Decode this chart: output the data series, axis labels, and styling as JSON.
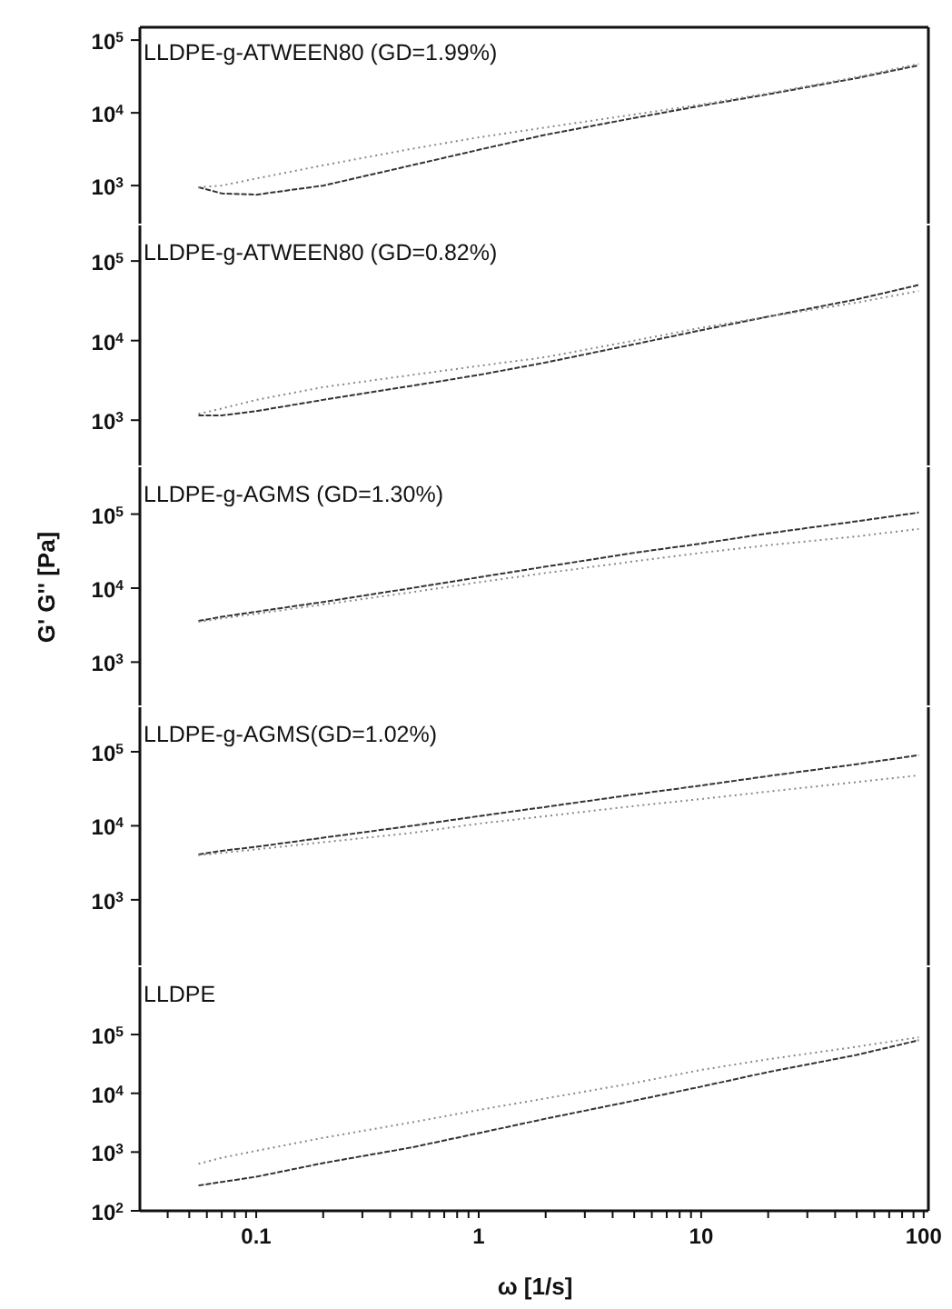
{
  "chart_data": [
    {
      "type": "line",
      "annotations": [
        "LLDPE-g-ATWEEN80 (GD=1.99%)"
      ],
      "x": [
        0.055,
        0.07,
        0.1,
        0.2,
        0.5,
        1,
        2,
        5,
        10,
        20,
        50,
        95
      ],
      "xlim": [
        0.03,
        105
      ],
      "ylim": [
        300,
        150000
      ],
      "log": "xy",
      "tick_labels": "y",
      "yticks": [
        {
          "value": 1000,
          "label": "10$^{3}$"
        },
        {
          "value": 10000,
          "label": "10$^{4}$"
        },
        {
          "value": 100000,
          "label": "10$^{5}$"
        }
      ],
      "marker": "none",
      "series": [
        {
          "color": "#333333",
          "line_style": "dashed",
          "values": [
            950,
            780,
            750,
            1000,
            1900,
            3100,
            5000,
            8500,
            12500,
            18000,
            30000,
            45000
          ]
        },
        {
          "color": "#888888",
          "line_style": "dotted",
          "values": [
            950,
            1000,
            1250,
            1900,
            3200,
            4600,
            6300,
            9500,
            13000,
            18500,
            31000,
            47000
          ]
        }
      ]
    },
    {
      "type": "line",
      "annotations": [
        "LLDPE-g-ATWEEN80 (GD=0.82%)"
      ],
      "x": [
        0.055,
        0.07,
        0.1,
        0.2,
        0.5,
        1,
        2,
        5,
        10,
        20,
        50,
        95
      ],
      "xlim": [
        0.03,
        105
      ],
      "ylim": [
        270,
        280000
      ],
      "log": "xy",
      "tick_labels": "y",
      "yticks": [
        {
          "value": 1000,
          "label": "10$^{3}$"
        },
        {
          "value": 10000,
          "label": "10$^{4}$"
        },
        {
          "value": 100000,
          "label": "10$^{5}$"
        }
      ],
      "marker": "none",
      "series": [
        {
          "color": "#333333",
          "line_style": "dashed",
          "values": [
            1150,
            1150,
            1300,
            1800,
            2700,
            3700,
            5300,
            9000,
            13500,
            20000,
            33000,
            50000
          ]
        },
        {
          "color": "#888888",
          "line_style": "dotted",
          "values": [
            1200,
            1400,
            1800,
            2600,
            3700,
            4800,
            6200,
            10000,
            14500,
            20000,
            30000,
            42000
          ]
        }
      ]
    },
    {
      "type": "line",
      "ylabel": "G' G'' [Pa]",
      "annotations": [
        "LLDPE-g-AGMS (GD=1.30%)"
      ],
      "x": [
        0.055,
        0.07,
        0.1,
        0.2,
        0.5,
        1,
        2,
        5,
        10,
        20,
        50,
        95
      ],
      "xlim": [
        0.03,
        105
      ],
      "ylim": [
        260,
        430000
      ],
      "log": "xy",
      "tick_labels": "y",
      "yticks": [
        {
          "value": 1000,
          "label": "10$^{3}$"
        },
        {
          "value": 10000,
          "label": "10$^{4}$"
        },
        {
          "value": 100000,
          "label": "10$^{5}$"
        }
      ],
      "marker": "none",
      "series": [
        {
          "color": "#333333",
          "line_style": "dashed",
          "values": [
            3600,
            4100,
            4800,
            6500,
            10000,
            14000,
            19500,
            30000,
            40000,
            55000,
            80000,
            105000
          ]
        },
        {
          "color": "#888888",
          "line_style": "dotted",
          "values": [
            3500,
            3900,
            4500,
            6000,
            8800,
            12000,
            16000,
            23000,
            30000,
            38000,
            50000,
            63000
          ]
        }
      ]
    },
    {
      "type": "line",
      "annotations": [
        "LLDPE-g-AGMS(GD=1.02%)"
      ],
      "x": [
        0.055,
        0.07,
        0.1,
        0.2,
        0.5,
        1,
        2,
        5,
        10,
        20,
        50,
        95
      ],
      "xlim": [
        0.03,
        105
      ],
      "ylim": [
        130,
        400000
      ],
      "log": "xy",
      "tick_labels": "y",
      "yticks": [
        {
          "value": 1000,
          "label": "10$^{3}$"
        },
        {
          "value": 10000,
          "label": "10$^{4}$"
        },
        {
          "value": 100000,
          "label": "10$^{5}$"
        }
      ],
      "marker": "none",
      "series": [
        {
          "color": "#333333",
          "line_style": "dashed",
          "values": [
            4100,
            4600,
            5200,
            6900,
            10000,
            13500,
            18000,
            26500,
            35000,
            47000,
            68000,
            90000
          ]
        },
        {
          "color": "#888888",
          "line_style": "dotted",
          "values": [
            4000,
            4300,
            4800,
            6000,
            8000,
            10700,
            13500,
            18500,
            23000,
            29000,
            39000,
            48000
          ]
        }
      ]
    },
    {
      "type": "line",
      "xlabel": "ω [1/s]",
      "annotations": [
        "LLDPE"
      ],
      "x": [
        0.055,
        0.07,
        0.1,
        0.2,
        0.5,
        1,
        2,
        5,
        10,
        20,
        50,
        95
      ],
      "xlim": [
        0.03,
        105
      ],
      "ylim": [
        100,
        1400000
      ],
      "log": "xy",
      "yticks": [
        {
          "value": 100,
          "label": "10$^{2}$"
        },
        {
          "value": 1000,
          "label": "10$^{3}$"
        },
        {
          "value": 10000,
          "label": "10$^{4}$"
        },
        {
          "value": 100000,
          "label": "10$^{5}$"
        }
      ],
      "xticks": [
        {
          "value": 0.04,
          "label": null
        },
        {
          "value": 0.05,
          "label": null
        },
        {
          "value": 0.06,
          "label": null
        },
        {
          "value": 0.07,
          "label": null
        },
        {
          "value": 0.08,
          "label": null
        },
        {
          "value": 0.09,
          "label": null
        },
        0.1,
        {
          "value": 0.2,
          "label": null
        },
        {
          "value": 0.3,
          "label": null
        },
        {
          "value": 0.4,
          "label": null
        },
        {
          "value": 0.5,
          "label": null
        },
        {
          "value": 0.6,
          "label": null
        },
        {
          "value": 0.7,
          "label": null
        },
        {
          "value": 0.8,
          "label": null
        },
        {
          "value": 0.9,
          "label": null
        },
        1,
        {
          "value": 2,
          "label": null
        },
        {
          "value": 3,
          "label": null
        },
        {
          "value": 4,
          "label": null
        },
        {
          "value": 5,
          "label": null
        },
        {
          "value": 6,
          "label": null
        },
        {
          "value": 7,
          "label": null
        },
        {
          "value": 8,
          "label": null
        },
        {
          "value": 9,
          "label": null
        },
        10,
        {
          "value": 20,
          "label": null
        },
        {
          "value": 30,
          "label": null
        },
        {
          "value": 40,
          "label": null
        },
        {
          "value": 50,
          "label": null
        },
        {
          "value": 60,
          "label": null
        },
        {
          "value": 70,
          "label": null
        },
        {
          "value": 80,
          "label": null
        },
        {
          "value": 90,
          "label": null
        },
        100
      ],
      "marker": "none",
      "series": [
        {
          "color": "#333333",
          "line_style": "dashed",
          "values": [
            270,
            310,
            380,
            650,
            1200,
            2100,
            3700,
            7500,
            13000,
            23000,
            45000,
            80000
          ]
        },
        {
          "color": "#888888",
          "line_style": "dotted",
          "values": [
            630,
            800,
            1050,
            1750,
            3200,
            5200,
            8200,
            15000,
            25000,
            38000,
            62000,
            90000
          ]
        }
      ]
    }
  ]
}
